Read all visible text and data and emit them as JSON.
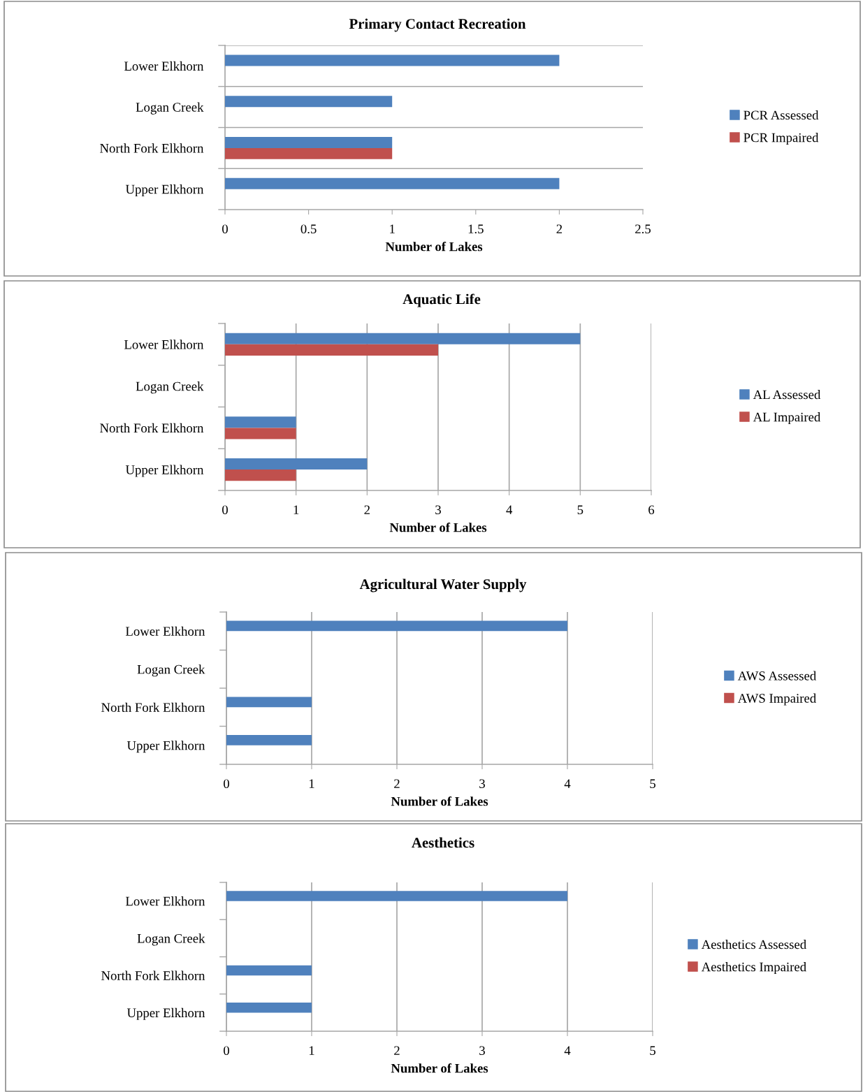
{
  "chart_data": [
    {
      "type": "bar",
      "orientation": "horizontal",
      "title": "Primary Contact Recreation",
      "xlabel": "Number of Lakes",
      "categories": [
        "Lower Elkhorn",
        "Logan Creek",
        "North Fork Elkhorn",
        "Upper Elkhorn"
      ],
      "xlim": [
        0,
        2.5
      ],
      "xticks": [
        0,
        0.5,
        1,
        1.5,
        2,
        2.5
      ],
      "grid": "y",
      "legend": "right",
      "series": [
        {
          "name": "PCR Assessed",
          "color": "#4f81bd",
          "values": [
            2,
            1,
            1,
            2
          ]
        },
        {
          "name": "PCR Impaired",
          "color": "#c0504d",
          "values": [
            0,
            0,
            1,
            0
          ]
        }
      ]
    },
    {
      "type": "bar",
      "orientation": "horizontal",
      "title": "Aquatic Life",
      "xlabel": "Number of Lakes",
      "categories": [
        "Lower Elkhorn",
        "Logan Creek",
        "North Fork Elkhorn",
        "Upper Elkhorn"
      ],
      "xlim": [
        0,
        6
      ],
      "xticks": [
        0,
        1,
        2,
        3,
        4,
        5,
        6
      ],
      "grid": "x",
      "legend": "right",
      "series": [
        {
          "name": "AL Assessed",
          "color": "#4f81bd",
          "values": [
            5,
            0,
            1,
            2
          ]
        },
        {
          "name": "AL Impaired",
          "color": "#c0504d",
          "values": [
            3,
            0,
            1,
            1
          ]
        }
      ]
    },
    {
      "type": "bar",
      "orientation": "horizontal",
      "title": "Agricultural Water Supply",
      "xlabel": "Number of Lakes",
      "categories": [
        "Lower Elkhorn",
        "Logan Creek",
        "North Fork Elkhorn",
        "Upper Elkhorn"
      ],
      "xlim": [
        0,
        5
      ],
      "xticks": [
        0,
        1,
        2,
        3,
        4,
        5
      ],
      "grid": "x",
      "legend": "right",
      "series": [
        {
          "name": "AWS Assessed",
          "color": "#4f81bd",
          "values": [
            4,
            0,
            1,
            1
          ]
        },
        {
          "name": "AWS Impaired",
          "color": "#c0504d",
          "values": [
            0,
            0,
            0,
            0
          ]
        }
      ]
    },
    {
      "type": "bar",
      "orientation": "horizontal",
      "title": "Aesthetics",
      "xlabel": "Number of Lakes",
      "categories": [
        "Lower Elkhorn",
        "Logan Creek",
        "North Fork Elkhorn",
        "Upper Elkhorn"
      ],
      "xlim": [
        0,
        5
      ],
      "xticks": [
        0,
        1,
        2,
        3,
        4,
        5
      ],
      "grid": "x",
      "legend": "right",
      "series": [
        {
          "name": "Aesthetics Assessed",
          "color": "#4f81bd",
          "values": [
            4,
            0,
            1,
            1
          ]
        },
        {
          "name": "Aesthetics Impaired",
          "color": "#c0504d",
          "values": [
            0,
            0,
            0,
            0
          ]
        }
      ]
    }
  ]
}
